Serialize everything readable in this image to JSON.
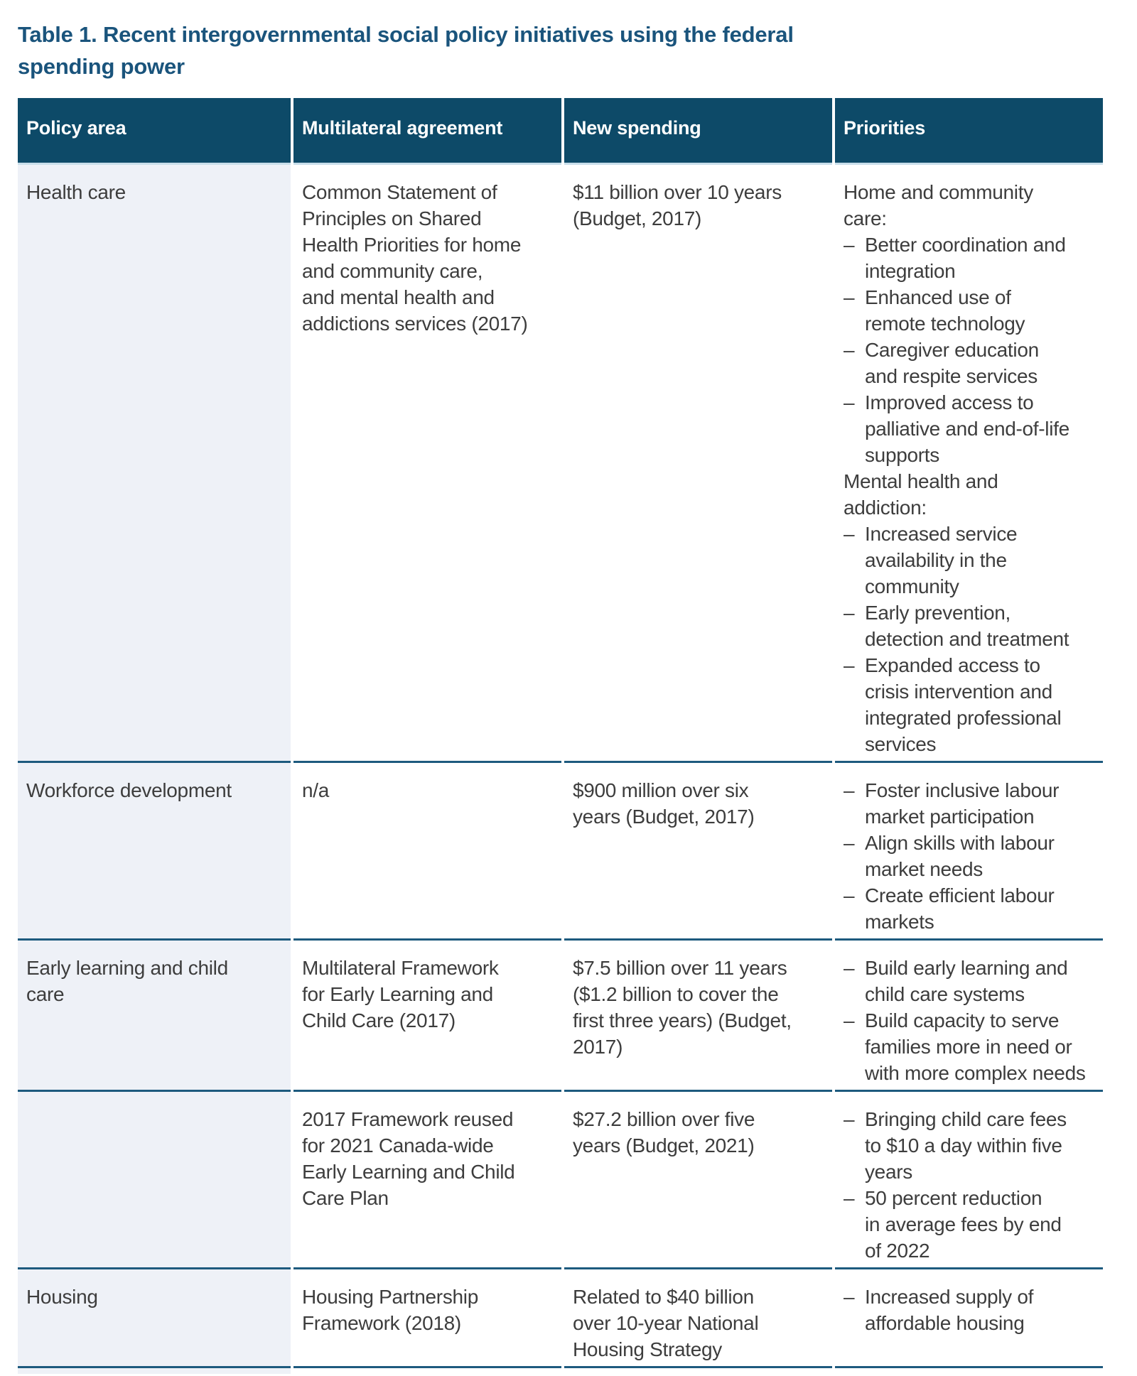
{
  "page": {
    "title_line1": "Table 1. Recent intergovernmental social policy initiatives using the federal",
    "title_line2": "spending power"
  },
  "colors": {
    "header_bg": "#0d4a68",
    "header_text": "#ffffff",
    "title_text": "#1a547c",
    "row_divider": "#1d5a7e",
    "header_underline": "#c8deea",
    "policy_column_bg": "#eef1f7",
    "body_text": "#3d3d3d"
  },
  "bullet_char": "–",
  "table": {
    "columns": [
      "Policy area",
      "Multilateral agreement",
      "New spending",
      "Priorities"
    ],
    "rows": [
      {
        "policy_area": "Health care",
        "agreement": "Common Statement of\nPrinciples on Shared\nHealth Priorities for home\nand community care,\nand mental health and\naddictions services (2017)",
        "spending": "$11 billion over 10 years\n(Budget, 2017)",
        "priorities": [
          {
            "style": "heading",
            "text": "Home and community\ncare:"
          },
          {
            "style": "bullet",
            "text": "Better coordination and\nintegration"
          },
          {
            "style": "bullet",
            "text": "Enhanced use of\nremote technology"
          },
          {
            "style": "bullet",
            "text": "Caregiver education\nand respite services"
          },
          {
            "style": "bullet",
            "text": "Improved access to\npalliative and end-of-life\nsupports"
          },
          {
            "style": "heading",
            "text": "Mental health and\naddiction:"
          },
          {
            "style": "bullet",
            "text": "Increased service\navailability in the\ncommunity"
          },
          {
            "style": "bullet",
            "text": "Early prevention,\ndetection and treatment"
          },
          {
            "style": "bullet",
            "text": "Expanded access to\ncrisis intervention and\nintegrated professional\nservices"
          }
        ]
      },
      {
        "policy_area": "Workforce development",
        "agreement": "n/a",
        "spending": "$900 million over six\nyears (Budget, 2017)",
        "priorities": [
          {
            "style": "bullet",
            "text": "Foster inclusive labour\nmarket participation"
          },
          {
            "style": "bullet",
            "text": "Align skills with labour\nmarket needs"
          },
          {
            "style": "bullet",
            "text": "Create efficient labour\nmarkets"
          }
        ]
      },
      {
        "policy_area": "Early learning and child\ncare",
        "agreement": "Multilateral Framework\nfor Early Learning and\nChild Care (2017)",
        "spending": "$7.5 billion over 11 years\n($1.2 billion to cover the\nfirst three years) (Budget,\n2017)",
        "priorities": [
          {
            "style": "bullet",
            "text": "Build early learning and\nchild care systems"
          },
          {
            "style": "bullet",
            "text": "Build capacity to serve\nfamilies more in need or\nwith more complex needs"
          }
        ]
      },
      {
        "policy_area": "",
        "agreement": "2017 Framework reused\nfor 2021 Canada-wide\nEarly Learning and Child\nCare Plan",
        "spending": "$27.2 billion over five\nyears (Budget, 2021)",
        "priorities": [
          {
            "style": "bullet",
            "text": "Bringing child care fees\nto $10 a day within five\nyears"
          },
          {
            "style": "bullet",
            "text": "50 percent reduction\nin average fees by end\nof 2022"
          }
        ]
      },
      {
        "policy_area": "Housing",
        "agreement": "Housing Partnership\nFramework (2018)",
        "spending": "Related to $40 billion\nover 10-year National\nHousing Strategy",
        "priorities": [
          {
            "style": "bullet",
            "text": "Increased supply of\naffordable housing"
          }
        ]
      }
    ]
  }
}
